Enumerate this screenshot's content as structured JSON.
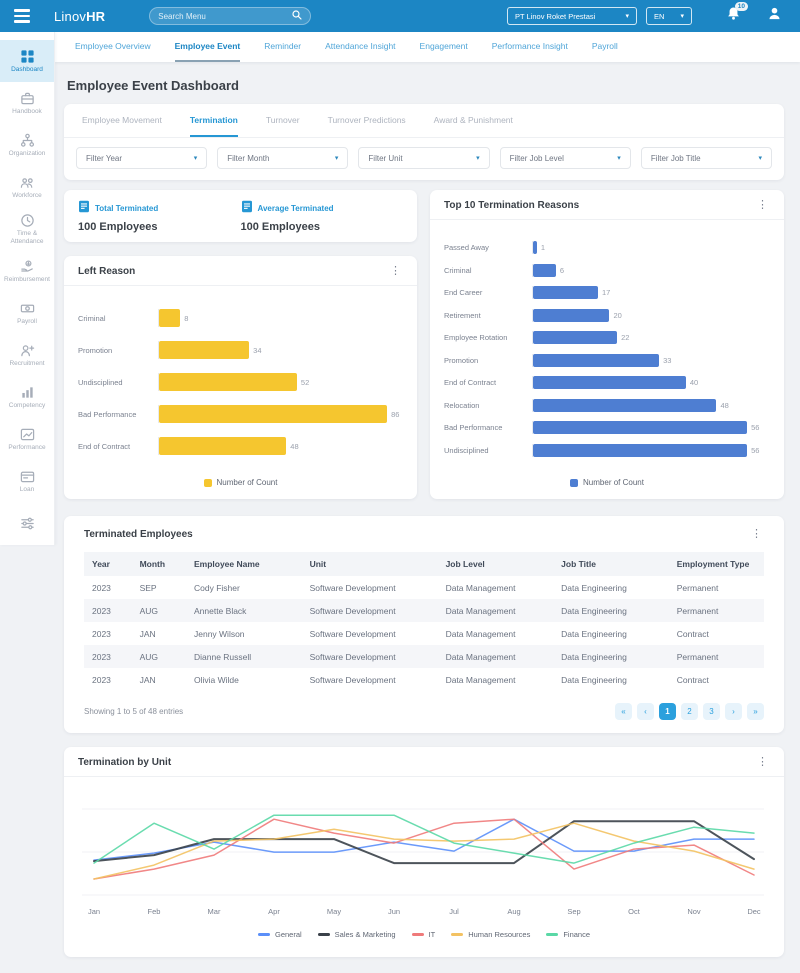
{
  "navbar": {
    "brand_regular": "Linov",
    "brand_bold": "HR",
    "search_placeholder": "Search Menu",
    "company_select": "PT Linov Roket Prestasi",
    "language_select": "EN",
    "notification_count": "10"
  },
  "topnav": {
    "items": [
      "Employee Overview",
      "Employee Event",
      "Reminder",
      "Attendance Insight",
      "Engagement",
      "Performance Insight",
      "Payroll"
    ],
    "active_index": 1
  },
  "sidebar": {
    "items": [
      {
        "label": "Dashboard",
        "icon": "dashboard",
        "active": true
      },
      {
        "label": "Handbook",
        "icon": "handbook",
        "active": false
      },
      {
        "label": "Organization",
        "icon": "organization",
        "active": false
      },
      {
        "label": "Workforce",
        "icon": "workforce",
        "active": false
      },
      {
        "label": "Time & Attendance",
        "icon": "time-attendance",
        "active": false
      },
      {
        "label": "Reimbursement",
        "icon": "reimbursement",
        "active": false
      },
      {
        "label": "Payroll",
        "icon": "payroll",
        "active": false
      },
      {
        "label": "Recruitment",
        "icon": "recruitment",
        "active": false
      },
      {
        "label": "Competency",
        "icon": "competency",
        "active": false
      },
      {
        "label": "Performance",
        "icon": "performance",
        "active": false
      },
      {
        "label": "Loan",
        "icon": "loan",
        "active": false
      },
      {
        "label": "",
        "icon": "tune",
        "active": false
      }
    ]
  },
  "page": {
    "title": "Employee Event Dashboard"
  },
  "tabs": {
    "items": [
      "Employee Movement",
      "Termination",
      "Turnover",
      "Turnover Predictions",
      "Award & Punishment"
    ],
    "active_index": 1
  },
  "filters": {
    "items": [
      "Filter Year",
      "Filter Month",
      "Filter Unit",
      "Filter Job Level",
      "Filter Job Title"
    ]
  },
  "stats": [
    {
      "icon": "report",
      "label": "Total Terminated",
      "value": "100 Employees"
    },
    {
      "icon": "report",
      "label": "Average Terminated",
      "value": "100 Employees"
    }
  ],
  "colors": {
    "navbar": "#1C86C4",
    "accent": "#2697D4",
    "bar_yellow": "#F5C62F",
    "bar_blue": "#4E7ED2"
  },
  "chart_data": [
    {
      "type": "bar",
      "orientation": "horizontal",
      "title": "Left Reason",
      "categories": [
        "Criminal",
        "Promotion",
        "Undisciplined",
        "Bad Performance",
        "End of Contract"
      ],
      "values": [
        8,
        34,
        52,
        86,
        48
      ],
      "xlim": [
        0,
        92
      ],
      "color": "#F5C62F",
      "legend": "Number of Count",
      "legend_position": "bottom"
    },
    {
      "type": "bar",
      "orientation": "horizontal",
      "title": "Top 10 Termination Reasons",
      "categories": [
        "Passed Away",
        "Criminal",
        "End Career",
        "Retirement",
        "Employee Rotation",
        "Promotion",
        "End of Contract",
        "Relocation",
        "Bad Performance",
        "Undisciplined"
      ],
      "values": [
        1,
        6,
        17,
        20,
        22,
        33,
        40,
        48,
        56,
        56
      ],
      "xlim": [
        0,
        62
      ],
      "color": "#4E7ED2",
      "legend": "Number of Count",
      "legend_position": "bottom"
    },
    {
      "type": "line",
      "title": "Termination by Unit",
      "x": [
        "Jan",
        "Feb",
        "Mar",
        "Apr",
        "May",
        "Jun",
        "Jul",
        "Aug",
        "Sep",
        "Oct",
        "Nov",
        "Dec"
      ],
      "ylim": [
        0,
        10
      ],
      "grid": true,
      "legend_position": "bottom",
      "series": [
        {
          "name": "General",
          "color": "#5B8FF9",
          "values": [
            3.5,
            4.2,
            5.3,
            4.3,
            4.3,
            5.3,
            4.4,
            7.6,
            4.4,
            4.4,
            5.6,
            5.6
          ]
        },
        {
          "name": "Sales & Marketing",
          "color": "#3A4149",
          "values": [
            3.4,
            4.0,
            5.6,
            5.6,
            5.6,
            3.2,
            3.2,
            3.2,
            7.4,
            7.4,
            7.4,
            3.6
          ]
        },
        {
          "name": "IT",
          "color": "#EF7A7A",
          "values": [
            1.6,
            2.6,
            4.0,
            7.6,
            6.2,
            5.2,
            7.2,
            7.6,
            2.6,
            4.6,
            5.0,
            2.0
          ]
        },
        {
          "name": "Human Resources",
          "color": "#F3C262",
          "values": [
            1.6,
            3.0,
            5.4,
            5.6,
            6.6,
            5.6,
            5.4,
            5.6,
            7.2,
            5.4,
            4.4,
            2.6
          ]
        },
        {
          "name": "Finance",
          "color": "#5AD8A6",
          "values": [
            3.2,
            7.2,
            4.6,
            8.0,
            8.0,
            8.0,
            5.2,
            4.2,
            3.2,
            5.2,
            6.8,
            6.2
          ]
        }
      ]
    }
  ],
  "table": {
    "title": "Terminated Employees",
    "columns": [
      "Year",
      "Month",
      "Employee Name",
      "Unit",
      "Job Level",
      "Job Title",
      "Employment Type"
    ],
    "rows": [
      [
        "2023",
        "SEP",
        "Cody Fisher",
        "Software Development",
        "Data Management",
        "Data Engineering",
        "Permanent"
      ],
      [
        "2023",
        "AUG",
        "Annette Black",
        "Software Development",
        "Data Management",
        "Data Engineering",
        "Permanent"
      ],
      [
        "2023",
        "JAN",
        "Jenny Wilson",
        "Software Development",
        "Data Management",
        "Data Engineering",
        "Contract"
      ],
      [
        "2023",
        "AUG",
        "Dianne Russell",
        "Software Development",
        "Data Management",
        "Data Engineering",
        "Permanent"
      ],
      [
        "2023",
        "JAN",
        "Olivia Wilde",
        "Software Development",
        "Data Management",
        "Data Engineering",
        "Contract"
      ]
    ],
    "footer": "Showing 1 to 5 of 48 entries",
    "pagination": {
      "buttons": [
        "«",
        "‹",
        "1",
        "2",
        "3",
        "›",
        "»"
      ],
      "active": "1"
    }
  }
}
